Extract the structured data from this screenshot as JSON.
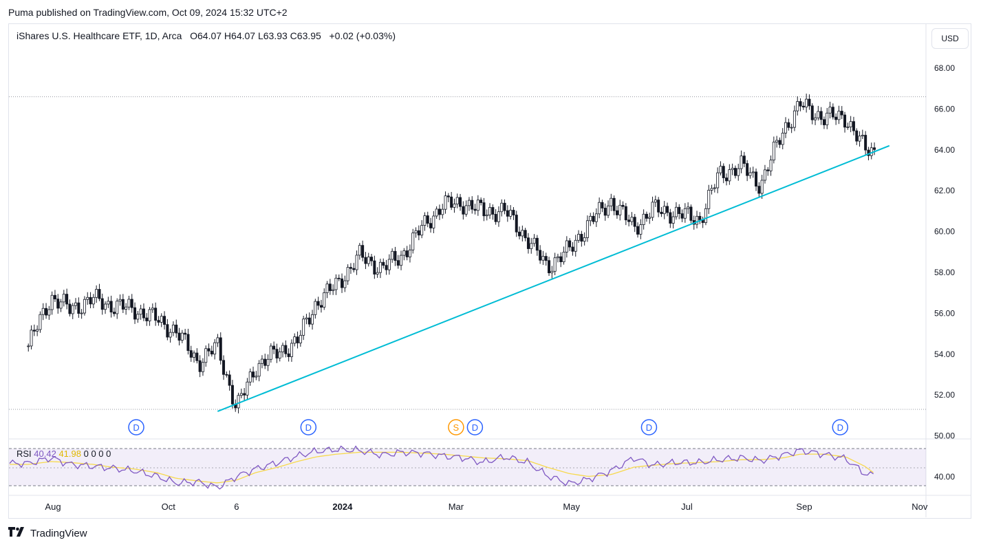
{
  "header": {
    "published": "Puma published on TradingView.com, Oct 09, 2024 15:32 UTC+2"
  },
  "legend": {
    "symbol": "iShares U.S. Healthcare ETF, 1D, Arca",
    "ohlc": "O64.07 H64.07 L63.93 C63.95",
    "change": "+0.02 (+0.03%)"
  },
  "currency_button": "USD",
  "footer": {
    "brand": "TradingView"
  },
  "colors": {
    "up": "#089981",
    "down": "#f23645",
    "trendline": "#00bcd4",
    "rsi": "#7e57c2",
    "rsi_ma": "#f7d94c",
    "event": "#2962ff",
    "split": "#ff9800"
  },
  "chart_data": [
    {
      "type": "candlestick",
      "title": "iShares U.S. Healthcare ETF, 1D, Arca",
      "y_axis_labels": [
        "68.00",
        "66.00",
        "64.00",
        "62.00",
        "60.00",
        "58.00",
        "56.00",
        "54.00",
        "52.00",
        "50.00"
      ],
      "ylim": [
        49.6,
        69.2
      ],
      "x_axis_labels": [
        "Aug",
        "Oct",
        "6",
        "2024",
        "Mar",
        "May",
        "Jul",
        "Sep",
        "Nov"
      ],
      "x": [
        "2023-07-19",
        "2023-07-31",
        "2023-08-10",
        "2023-08-22",
        "2023-09-01",
        "2023-09-13",
        "2023-09-25",
        "2023-10-05",
        "2023-10-17",
        "2023-10-27",
        "2023-11-06",
        "2023-11-16",
        "2023-11-28",
        "2023-12-08",
        "2023-12-18",
        "2023-12-29",
        "2024-01-10",
        "2024-01-22",
        "2024-02-01",
        "2024-02-13",
        "2024-02-23",
        "2024-03-05",
        "2024-03-15",
        "2024-03-27",
        "2024-04-08",
        "2024-04-18",
        "2024-04-30",
        "2024-05-10",
        "2024-05-22",
        "2024-06-03",
        "2024-06-13",
        "2024-06-25",
        "2024-07-08",
        "2024-07-18",
        "2024-07-30",
        "2024-08-09",
        "2024-08-21",
        "2024-08-30",
        "2024-09-11",
        "2024-09-23",
        "2024-10-03",
        "2024-10-09"
      ],
      "close": [
        54.4,
        56.8,
        56.2,
        56.7,
        56.4,
        56.2,
        55.7,
        55.1,
        53.6,
        54.4,
        51.3,
        53.4,
        54.1,
        54.6,
        56.5,
        57.4,
        58.8,
        58.2,
        58.8,
        60.3,
        61.3,
        61.4,
        61.0,
        61.0,
        59.6,
        58.3,
        59.1,
        60.4,
        61.5,
        60.2,
        61.1,
        60.9,
        60.6,
        62.8,
        63.2,
        62.3,
        65.0,
        66.2,
        65.6,
        65.6,
        64.0,
        63.95
      ],
      "reference_lines": [
        {
          "name": "high",
          "value": 66.6
        },
        {
          "name": "low",
          "value": 51.3
        }
      ],
      "trendline": {
        "from": {
          "x": "2023-10-27",
          "y": 51.2
        },
        "to": {
          "x": "2024-10-16",
          "y": 64.2
        }
      },
      "event_markers": [
        {
          "label": "D",
          "x": "2023-09-14"
        },
        {
          "label": "D",
          "x": "2023-12-14"
        },
        {
          "label": "S",
          "x": "2024-03-01"
        },
        {
          "label": "D",
          "x": "2024-03-11"
        },
        {
          "label": "D",
          "x": "2024-06-11"
        },
        {
          "label": "D",
          "x": "2024-09-20"
        }
      ]
    },
    {
      "type": "line",
      "title": "RSI",
      "values_label": [
        "40.42",
        "41.98",
        "0",
        "0",
        "0",
        "0"
      ],
      "y_axis_labels": [
        "40.00"
      ],
      "rsi": [
        54,
        60,
        53,
        51,
        49,
        46,
        40,
        33,
        34,
        28,
        40,
        48,
        55,
        62,
        67,
        69,
        68,
        63,
        66,
        65,
        62,
        60,
        55,
        61,
        55,
        41,
        32,
        37,
        46,
        60,
        52,
        55,
        55,
        58,
        60,
        57,
        63,
        68,
        64,
        59,
        43,
        40.42
      ],
      "rsi_ma": [
        53,
        56,
        55,
        53,
        50,
        48,
        44,
        38,
        35,
        33,
        36,
        44,
        50,
        56,
        61,
        64,
        66,
        66,
        66,
        65,
        64,
        62,
        60,
        59,
        57,
        50,
        43,
        40,
        42,
        50,
        52,
        54,
        55,
        56,
        58,
        58,
        60,
        64,
        64,
        61,
        51,
        41.98
      ]
    }
  ]
}
